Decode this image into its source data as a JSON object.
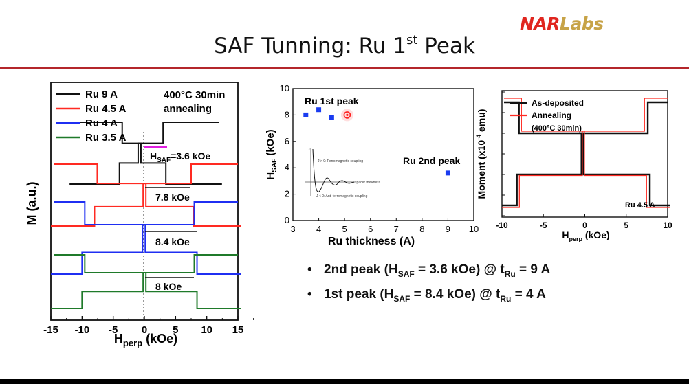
{
  "logo": {
    "part1": "NAR",
    "part2": "Labs"
  },
  "title": {
    "main": "SAF Tunning: Ru 1",
    "sup": "st",
    "tail": " Peak"
  },
  "colors": {
    "accent": "#b4262b",
    "red": "#ff2a22",
    "blue": "#1f2ff2",
    "green": "#1f7a2a",
    "black": "#111111",
    "point_blue": "#1a3cf0",
    "point_red": "#ff2020"
  },
  "bullets": [
    {
      "pre": "2nd peak (H",
      "sub1": "SAF",
      "mid": " = 3.6 kOe) @ t",
      "sub2": "Ru",
      "post": " = 9 A"
    },
    {
      "pre": "1st peak (H",
      "sub1": "SAF",
      "mid": " = 8.4 kOe) @ t",
      "sub2": "Ru",
      "post": " = 4 A"
    }
  ],
  "chart_data": [
    {
      "type": "line",
      "description_axis": "left",
      "xlabel_main": "H",
      "xlabel_sub": "perp",
      "xlabel_tail": " (kOe)",
      "ylabel": "M (a.u.)",
      "xlim": [
        -15,
        15
      ],
      "xticks": [
        "-15",
        "-10",
        "-5",
        "0",
        "5",
        "10",
        "15"
      ],
      "legend": [
        "Ru 9 A",
        "Ru 4.5 A",
        "Ru 4 A",
        "Ru 3.5 A"
      ],
      "annotation_lines": [
        "400°C 30min",
        "annealing"
      ],
      "labels": {
        "hsaf_main": "H",
        "hsaf_sub": "SAF",
        "hsaf_val": "=3.6 kOe",
        "r45": "7.8 kOe",
        "r4": "8.4 kOe",
        "r35": "8 kOe"
      },
      "series": [
        {
          "name": "Ru 9 A",
          "x": [
            -12,
            -4,
            -3,
            -1,
            1,
            3,
            4,
            12
          ],
          "y": [
            -0.1,
            -0.1,
            0.65,
            0.65,
            1.35,
            1.35,
            2.1,
            2.1
          ]
        },
        {
          "name": "Ru 4.5 A",
          "x": [
            -15,
            -8,
            -7.5,
            -0.2,
            0.2,
            7.5,
            8,
            15
          ],
          "y": [
            -0.15,
            -0.15,
            0.85,
            0.85,
            2.05,
            2.05,
            3.05,
            3.05
          ]
        },
        {
          "name": "Ru 4 A",
          "x": [
            -15,
            -10,
            -8,
            -0.3,
            0.3,
            8,
            10,
            15
          ],
          "y": [
            -0.15,
            -0.15,
            0.9,
            0.9,
            2.25,
            2.25,
            3.35,
            3.35
          ]
        },
        {
          "name": "Ru 3.5 A",
          "x": [
            -15,
            -10,
            -8,
            -0.2,
            0.2,
            8,
            10,
            15
          ],
          "y": [
            -0.1,
            -0.1,
            0.9,
            0.9,
            2.0,
            2.0,
            3.05,
            3.05
          ]
        }
      ]
    },
    {
      "type": "scatter",
      "xlabel": "Ru thickness (A)",
      "ylabel_main": "H",
      "ylabel_sub": "SAF",
      "ylabel_tail": " (kOe)",
      "xlim": [
        3,
        10
      ],
      "ylim": [
        0,
        10
      ],
      "xticks": [
        "3",
        "4",
        "5",
        "6",
        "7",
        "8",
        "9",
        "10"
      ],
      "yticks": [
        "0",
        "2",
        "4",
        "6",
        "8",
        "10"
      ],
      "annotations": [
        "Ru 1st peak",
        "Ru 2nd peak"
      ],
      "points": [
        {
          "x": 3.5,
          "y": 8.0,
          "highlight": false
        },
        {
          "x": 4.0,
          "y": 8.4,
          "highlight": false
        },
        {
          "x": 4.5,
          "y": 7.8,
          "highlight": false
        },
        {
          "x": 5.1,
          "y": 8.0,
          "highlight": true
        },
        {
          "x": 9.0,
          "y": 3.6,
          "highlight": false
        }
      ],
      "inset_texts": [
        "J > 0: Ferromagnetic coupling",
        "J < 0: Anti-ferromagnetic coupling",
        "spacer thickness",
        "J"
      ]
    },
    {
      "type": "line",
      "xlabel_main": "H",
      "xlabel_sub": "perp",
      "xlabel_tail": " (kOe)",
      "ylabel": "Moment (x10",
      "ylabel_sup": "-4",
      "ylabel_tail": " emu)",
      "xlim": [
        -10,
        10
      ],
      "xticks": [
        "-10",
        "-5",
        "0",
        "5",
        "10"
      ],
      "legend": [
        "As-deposited",
        "Annealing"
      ],
      "legend_note": "(400°C 30min)",
      "annotation": "Ru 4.5 A",
      "series": [
        {
          "name": "As-deposited",
          "x": [
            -10,
            -8.2,
            -7.6,
            -0.4,
            0.4,
            7.6,
            8.2,
            10
          ],
          "y": [
            -2.5,
            -2.5,
            -1.0,
            -1.0,
            1.0,
            1.0,
            2.5,
            2.5
          ]
        },
        {
          "name": "Annealing",
          "x": [
            -10,
            -7.9,
            -7.2,
            -0.3,
            0.3,
            7.2,
            7.9,
            10
          ],
          "y": [
            -2.6,
            -2.6,
            -1.05,
            -1.05,
            1.1,
            1.1,
            2.7,
            2.7
          ]
        }
      ]
    }
  ]
}
